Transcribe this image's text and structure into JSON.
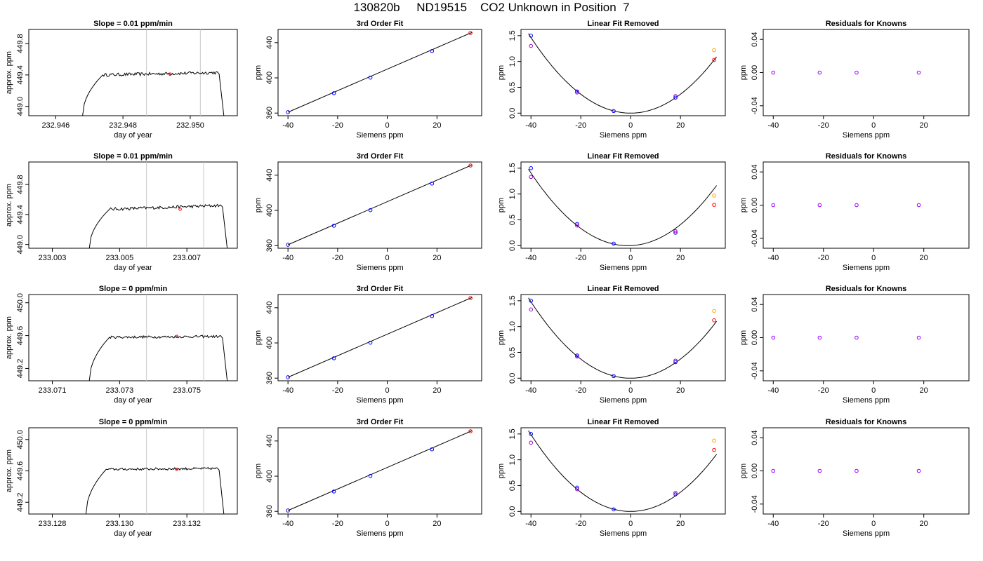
{
  "page": {
    "title": "130820b     ND19515    CO2 Unknown in Position  7"
  },
  "colors": {
    "axis": "#000000",
    "line": "#000000",
    "marker_line": "#c8c8c8",
    "mean_point": "#ff0000",
    "known": "#0000ff",
    "known_alt": "#9900cc",
    "unknown": "#ffa500",
    "unknown_fit": "#ff0000"
  },
  "chart_data": [
    {
      "type": "line",
      "row": 1,
      "col": 1,
      "title": "Slope =  0.01  ppm/min",
      "xlabel": "day of year",
      "ylabel": "approx. ppm",
      "xlim": [
        232.9452,
        232.9514
      ],
      "ylim": [
        448.88,
        449.98
      ],
      "xticks": [
        232.946,
        232.948,
        232.95
      ],
      "xtick_labels": [
        "232.946",
        "232.948",
        "232.950"
      ],
      "yticks": [
        449.0,
        449.4,
        449.8
      ],
      "ytick_labels": [
        "449.0",
        "449.4",
        "449.8"
      ],
      "trace": {
        "x_start": 232.9468,
        "x_rise": 232.9474,
        "x_end": 232.9508,
        "x_fall_end": 232.951,
        "level": 449.4,
        "end_level": 449.43,
        "noise": 0.02,
        "bottom": 448.88
      },
      "markers_x": [
        232.9487,
        232.9503
      ],
      "mean_point": {
        "x": 232.9494,
        "y": 449.41
      }
    },
    {
      "type": "scatter",
      "row": 1,
      "col": 2,
      "title": "3rd Order Fit",
      "xlabel": "Siemens ppm",
      "ylabel": "ppm",
      "xlim": [
        -44,
        38
      ],
      "ylim": [
        357,
        455
      ],
      "xticks": [
        -40,
        -20,
        0,
        20
      ],
      "yticks": [
        360,
        400,
        440
      ],
      "line": {
        "x": [
          -40,
          34
        ],
        "y": [
          361,
          451.5
        ]
      },
      "points": [
        {
          "x": -40,
          "y": 361,
          "color": "#0000ff"
        },
        {
          "x": -21.5,
          "y": 382.6,
          "color": "#0000ff"
        },
        {
          "x": -6.8,
          "y": 400.3,
          "color": "#0000ff"
        },
        {
          "x": 18,
          "y": 430.5,
          "color": "#0000ff"
        },
        {
          "x": 33.5,
          "y": 451,
          "color": "#ff0000"
        }
      ]
    },
    {
      "type": "scatter",
      "row": 1,
      "col": 3,
      "title": "Linear Fit Removed",
      "xlabel": "Siemens ppm",
      "ylabel": "ppm",
      "xlim": [
        -44,
        38
      ],
      "ylim": [
        -0.05,
        1.62
      ],
      "xticks": [
        -40,
        -20,
        0,
        20
      ],
      "yticks": [
        0,
        0.5,
        1,
        1.5
      ],
      "ytick_labels": [
        "0.0",
        "0.5",
        "1.0",
        "1.5"
      ],
      "curve": {
        "a": 0.000915,
        "h": 0,
        "x0": -41,
        "x1": 34.5
      },
      "points": [
        {
          "x": -40,
          "y": 1.5,
          "color": "#0000ff"
        },
        {
          "x": -40,
          "y": 1.3,
          "color": "#9900cc"
        },
        {
          "x": -21.5,
          "y": 0.42,
          "color": "#0000ff"
        },
        {
          "x": -21.5,
          "y": 0.4,
          "color": "#9900cc"
        },
        {
          "x": -6.8,
          "y": 0.04,
          "color": "#0000ff"
        },
        {
          "x": 18,
          "y": 0.3,
          "color": "#0000ff"
        },
        {
          "x": 18,
          "y": 0.33,
          "color": "#9900cc"
        },
        {
          "x": 33.5,
          "y": 1.22,
          "color": "#ffa500"
        },
        {
          "x": 33.5,
          "y": 1.03,
          "color": "#ff0000"
        }
      ]
    },
    {
      "type": "scatter",
      "row": 1,
      "col": 4,
      "title": "Residuals for Knowns",
      "xlabel": "Siemens ppm",
      "ylabel": "ppm",
      "xlim": [
        -44,
        38
      ],
      "ylim": [
        -0.052,
        0.052
      ],
      "xticks": [
        -40,
        -20,
        0,
        20
      ],
      "yticks": [
        -0.04,
        0,
        0.04
      ],
      "ytick_labels": [
        "-0.04",
        "0.00",
        "0.04"
      ],
      "points": [
        {
          "x": -40,
          "y": 0,
          "color": "#9900ff"
        },
        {
          "x": -21.5,
          "y": 0,
          "color": "#9900ff"
        },
        {
          "x": -6.8,
          "y": 0,
          "color": "#9900ff"
        },
        {
          "x": 18,
          "y": 0,
          "color": "#9900ff"
        }
      ]
    },
    {
      "type": "line",
      "row": 2,
      "col": 1,
      "title": "Slope =  0.01  ppm/min",
      "xlabel": "day of year",
      "ylabel": "approx. ppm",
      "xlim": [
        233.0023,
        233.0085
      ],
      "ylim": [
        448.95,
        450.1
      ],
      "xticks": [
        233.003,
        233.005,
        233.007
      ],
      "xtick_labels": [
        "233.003",
        "233.005",
        "233.007"
      ],
      "yticks": [
        449.0,
        449.4,
        449.8
      ],
      "ytick_labels": [
        "449.0",
        "449.4",
        "449.8"
      ],
      "trace": {
        "x_start": 233.0041,
        "x_rise": 233.0047,
        "x_end": 233.008,
        "x_fall_end": 233.0082,
        "level": 449.47,
        "end_level": 449.52,
        "noise": 0.02,
        "bottom": 448.95
      },
      "markers_x": [
        233.0058,
        233.0075
      ],
      "mean_point": {
        "x": 233.0068,
        "y": 449.47
      }
    },
    {
      "type": "scatter",
      "row": 2,
      "col": 2,
      "title": "3rd Order Fit",
      "xlabel": "Siemens ppm",
      "ylabel": "ppm",
      "xlim": [
        -44,
        38
      ],
      "ylim": [
        357,
        455
      ],
      "xticks": [
        -40,
        -20,
        0,
        20
      ],
      "yticks": [
        360,
        400,
        440
      ],
      "line": {
        "x": [
          -40,
          34
        ],
        "y": [
          361,
          451.5
        ]
      },
      "points": [
        {
          "x": -40,
          "y": 361,
          "color": "#0000ff"
        },
        {
          "x": -21.5,
          "y": 382.6,
          "color": "#0000ff"
        },
        {
          "x": -6.8,
          "y": 400.3,
          "color": "#0000ff"
        },
        {
          "x": 18,
          "y": 430.5,
          "color": "#0000ff"
        },
        {
          "x": 33.5,
          "y": 451,
          "color": "#ff0000"
        }
      ]
    },
    {
      "type": "scatter",
      "row": 2,
      "col": 3,
      "title": "Linear Fit Removed",
      "xlabel": "Siemens ppm",
      "ylabel": "ppm",
      "xlim": [
        -44,
        38
      ],
      "ylim": [
        -0.05,
        1.62
      ],
      "xticks": [
        -40,
        -20,
        0,
        20
      ],
      "yticks": [
        0,
        0.5,
        1,
        1.5
      ],
      "ytick_labels": [
        "0.0",
        "0.5",
        "1.0",
        "1.5"
      ],
      "curve": {
        "a": 0.000925,
        "h": -1,
        "x0": -41,
        "x1": 34.5
      },
      "points": [
        {
          "x": -40,
          "y": 1.5,
          "color": "#0000ff"
        },
        {
          "x": -40,
          "y": 1.33,
          "color": "#9900cc"
        },
        {
          "x": -21.5,
          "y": 0.42,
          "color": "#0000ff"
        },
        {
          "x": -21.5,
          "y": 0.39,
          "color": "#9900cc"
        },
        {
          "x": -6.8,
          "y": 0.04,
          "color": "#0000ff"
        },
        {
          "x": 18,
          "y": 0.25,
          "color": "#0000ff"
        },
        {
          "x": 18,
          "y": 0.28,
          "color": "#9900cc"
        },
        {
          "x": 33.5,
          "y": 0.97,
          "color": "#ffa500"
        },
        {
          "x": 33.5,
          "y": 0.79,
          "color": "#ff0000"
        }
      ]
    },
    {
      "type": "scatter",
      "row": 2,
      "col": 4,
      "title": "Residuals for Knowns",
      "xlabel": "Siemens ppm",
      "ylabel": "ppm",
      "xlim": [
        -44,
        38
      ],
      "ylim": [
        -0.052,
        0.052
      ],
      "xticks": [
        -40,
        -20,
        0,
        20
      ],
      "yticks": [
        -0.04,
        0,
        0.04
      ],
      "ytick_labels": [
        "-0.04",
        "0.00",
        "0.04"
      ],
      "points": [
        {
          "x": -40,
          "y": 0,
          "color": "#9900ff"
        },
        {
          "x": -21.5,
          "y": 0,
          "color": "#9900ff"
        },
        {
          "x": -6.8,
          "y": 0,
          "color": "#9900ff"
        },
        {
          "x": 18,
          "y": 0,
          "color": "#9900ff"
        }
      ]
    },
    {
      "type": "line",
      "row": 3,
      "col": 1,
      "title": "Slope =  0  ppm/min",
      "xlabel": "day of year",
      "ylabel": "approx. ppm",
      "xlim": [
        233.0703,
        233.0765
      ],
      "ylim": [
        449.05,
        450.1
      ],
      "xticks": [
        233.071,
        233.073,
        233.075
      ],
      "xtick_labels": [
        "233.071",
        "233.073",
        "233.075"
      ],
      "yticks": [
        449.2,
        449.6,
        450.0
      ],
      "ytick_labels": [
        "449.2",
        "449.6",
        "450.0"
      ],
      "trace": {
        "x_start": 233.0721,
        "x_rise": 233.0727,
        "x_end": 233.076,
        "x_fall_end": 233.0762,
        "level": 449.58,
        "end_level": 449.59,
        "noise": 0.015,
        "bottom": 449.05
      },
      "markers_x": [
        233.0738,
        233.0755
      ],
      "mean_point": {
        "x": 233.0747,
        "y": 449.59
      }
    },
    {
      "type": "scatter",
      "row": 3,
      "col": 2,
      "title": "3rd Order Fit",
      "xlabel": "Siemens ppm",
      "ylabel": "ppm",
      "xlim": [
        -44,
        38
      ],
      "ylim": [
        357,
        455
      ],
      "xticks": [
        -40,
        -20,
        0,
        20
      ],
      "yticks": [
        360,
        400,
        440
      ],
      "line": {
        "x": [
          -40,
          34
        ],
        "y": [
          361,
          451.5
        ]
      },
      "points": [
        {
          "x": -40,
          "y": 361,
          "color": "#0000ff"
        },
        {
          "x": -21.5,
          "y": 382.6,
          "color": "#0000ff"
        },
        {
          "x": -6.8,
          "y": 400.3,
          "color": "#0000ff"
        },
        {
          "x": 18,
          "y": 430.5,
          "color": "#0000ff"
        },
        {
          "x": 33.5,
          "y": 451,
          "color": "#ff0000"
        }
      ]
    },
    {
      "type": "scatter",
      "row": 3,
      "col": 3,
      "title": "Linear Fit Removed",
      "xlabel": "Siemens ppm",
      "ylabel": "ppm",
      "xlim": [
        -44,
        38
      ],
      "ylim": [
        -0.05,
        1.62
      ],
      "xticks": [
        -40,
        -20,
        0,
        20
      ],
      "yticks": [
        0,
        0.5,
        1,
        1.5
      ],
      "ytick_labels": [
        "0.0",
        "0.5",
        "1.0",
        "1.5"
      ],
      "curve": {
        "a": 0.000925,
        "h": 0,
        "x0": -41,
        "x1": 34.5
      },
      "points": [
        {
          "x": -40,
          "y": 1.5,
          "color": "#0000ff"
        },
        {
          "x": -40,
          "y": 1.33,
          "color": "#9900cc"
        },
        {
          "x": -21.5,
          "y": 0.44,
          "color": "#0000ff"
        },
        {
          "x": -21.5,
          "y": 0.42,
          "color": "#9900cc"
        },
        {
          "x": -6.8,
          "y": 0.04,
          "color": "#0000ff"
        },
        {
          "x": 18,
          "y": 0.31,
          "color": "#0000ff"
        },
        {
          "x": 18,
          "y": 0.34,
          "color": "#9900cc"
        },
        {
          "x": 33.5,
          "y": 1.3,
          "color": "#ffa500"
        },
        {
          "x": 33.5,
          "y": 1.12,
          "color": "#ff0000"
        }
      ]
    },
    {
      "type": "scatter",
      "row": 3,
      "col": 4,
      "title": "Residuals for Knowns",
      "xlabel": "Siemens ppm",
      "ylabel": "ppm",
      "xlim": [
        -44,
        38
      ],
      "ylim": [
        -0.052,
        0.052
      ],
      "xticks": [
        -40,
        -20,
        0,
        20
      ],
      "yticks": [
        -0.04,
        0,
        0.04
      ],
      "ytick_labels": [
        "-0.04",
        "0.00",
        "0.04"
      ],
      "points": [
        {
          "x": -40,
          "y": 0,
          "color": "#9900ff"
        },
        {
          "x": -21.5,
          "y": 0,
          "color": "#9900ff"
        },
        {
          "x": -6.8,
          "y": 0,
          "color": "#9900ff"
        },
        {
          "x": 18,
          "y": 0,
          "color": "#9900ff"
        }
      ]
    },
    {
      "type": "line",
      "row": 4,
      "col": 1,
      "title": "Slope =  0  ppm/min",
      "xlabel": "day of year",
      "ylabel": "approx. ppm",
      "xlim": [
        233.1273,
        233.1335
      ],
      "ylim": [
        449.05,
        450.15
      ],
      "xticks": [
        233.128,
        233.13,
        233.132
      ],
      "xtick_labels": [
        "233.128",
        "233.130",
        "233.132"
      ],
      "yticks": [
        449.2,
        449.6,
        450.0
      ],
      "ytick_labels": [
        "449.2",
        "449.6",
        "450.0"
      ],
      "trace": {
        "x_start": 233.129,
        "x_rise": 233.1296,
        "x_end": 233.1329,
        "x_fall_end": 233.1331,
        "level": 449.62,
        "end_level": 449.63,
        "noise": 0.015,
        "bottom": 449.05
      },
      "markers_x": [
        233.1308,
        233.1325
      ],
      "mean_point": {
        "x": 233.1317,
        "y": 449.62
      }
    },
    {
      "type": "scatter",
      "row": 4,
      "col": 2,
      "title": "3rd Order Fit",
      "xlabel": "Siemens ppm",
      "ylabel": "ppm",
      "xlim": [
        -44,
        38
      ],
      "ylim": [
        357,
        455
      ],
      "xticks": [
        -40,
        -20,
        0,
        20
      ],
      "yticks": [
        360,
        400,
        440
      ],
      "line": {
        "x": [
          -40,
          34
        ],
        "y": [
          361,
          451.5
        ]
      },
      "points": [
        {
          "x": -40,
          "y": 361,
          "color": "#0000ff"
        },
        {
          "x": -21.5,
          "y": 382.6,
          "color": "#0000ff"
        },
        {
          "x": -6.8,
          "y": 400.3,
          "color": "#0000ff"
        },
        {
          "x": 18,
          "y": 430.5,
          "color": "#0000ff"
        },
        {
          "x": 33.5,
          "y": 451,
          "color": "#ff0000"
        }
      ]
    },
    {
      "type": "scatter",
      "row": 4,
      "col": 3,
      "title": "Linear Fit Removed",
      "xlabel": "Siemens ppm",
      "ylabel": "ppm",
      "xlim": [
        -44,
        38
      ],
      "ylim": [
        -0.05,
        1.62
      ],
      "xticks": [
        -40,
        -20,
        0,
        20
      ],
      "yticks": [
        0,
        0.5,
        1,
        1.5
      ],
      "ytick_labels": [
        "0.0",
        "0.5",
        "1.0",
        "1.5"
      ],
      "curve": {
        "a": 0.00093,
        "h": 0,
        "x0": -41,
        "x1": 34.5
      },
      "points": [
        {
          "x": -40,
          "y": 1.5,
          "color": "#0000ff"
        },
        {
          "x": -40,
          "y": 1.33,
          "color": "#9900cc"
        },
        {
          "x": -21.5,
          "y": 0.46,
          "color": "#0000ff"
        },
        {
          "x": -21.5,
          "y": 0.43,
          "color": "#9900cc"
        },
        {
          "x": -6.8,
          "y": 0.04,
          "color": "#0000ff"
        },
        {
          "x": 18,
          "y": 0.33,
          "color": "#0000ff"
        },
        {
          "x": 18,
          "y": 0.36,
          "color": "#9900cc"
        },
        {
          "x": 33.5,
          "y": 1.37,
          "color": "#ffa500"
        },
        {
          "x": 33.5,
          "y": 1.19,
          "color": "#ff0000"
        }
      ]
    },
    {
      "type": "scatter",
      "row": 4,
      "col": 4,
      "title": "Residuals for Knowns",
      "xlabel": "Siemens ppm",
      "ylabel": "ppm",
      "xlim": [
        -44,
        38
      ],
      "ylim": [
        -0.052,
        0.052
      ],
      "xticks": [
        -40,
        -20,
        0,
        20
      ],
      "yticks": [
        -0.04,
        0,
        0.04
      ],
      "ytick_labels": [
        "-0.04",
        "0.00",
        "0.04"
      ],
      "points": [
        {
          "x": -40,
          "y": 0,
          "color": "#9900ff"
        },
        {
          "x": -21.5,
          "y": 0,
          "color": "#9900ff"
        },
        {
          "x": -6.8,
          "y": 0,
          "color": "#9900ff"
        },
        {
          "x": 18,
          "y": 0,
          "color": "#9900ff"
        }
      ]
    }
  ]
}
